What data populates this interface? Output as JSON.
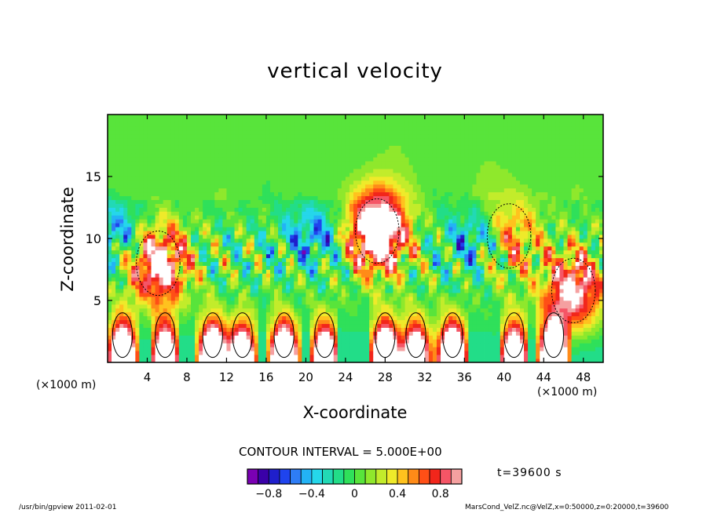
{
  "title": "vertical velocity",
  "xlabel": "X-coordinate",
  "ylabel": "Z-coordinate",
  "x_unit_left": "(×1000 m)",
  "x_unit_right": "(×1000 m)",
  "contour_interval_text": "CONTOUR INTERVAL = 5.000E+00",
  "time_label": "t=39600 s",
  "footer_left": "/usr/bin/gpview  2011-02-01",
  "footer_right": "MarsCond_VelZ.nc@VelZ,x=0:50000,z=0:20000,t=39600",
  "chart_data": {
    "type": "heatmap",
    "title": "vertical velocity",
    "xlabel": "X-coordinate",
    "ylabel": "Z-coordinate",
    "xlim": [
      0,
      50
    ],
    "ylim": [
      0,
      20
    ],
    "x_ticks": [
      4,
      8,
      12,
      16,
      20,
      24,
      28,
      32,
      36,
      40,
      44,
      48
    ],
    "y_ticks": [
      5,
      10,
      15
    ],
    "colorbar": {
      "min": -1.0,
      "max": 1.0,
      "step": 0.1,
      "tick_values": [
        -0.8,
        -0.4,
        0,
        0.4,
        0.8
      ],
      "tick_labels": [
        "−0.8",
        "−0.4",
        "0",
        "0.4",
        "0.8"
      ],
      "colors": [
        "#7a00b3",
        "#3a00a8",
        "#1f1fcc",
        "#1f44ee",
        "#2e7df6",
        "#23b3f5",
        "#25d7ea",
        "#22d9b5",
        "#22dd88",
        "#2fe05a",
        "#58e43b",
        "#8fe82c",
        "#c2ec2b",
        "#efea2a",
        "#ffc21e",
        "#ff8b18",
        "#ff4f16",
        "#f2261b",
        "#f55566",
        "#f5a0a0"
      ]
    },
    "field": {
      "background_level": 0,
      "upper_level": 0.05,
      "updrafts": [
        {
          "x": 27.2,
          "z": 10.6,
          "w": 1.6
        },
        {
          "x": 5.1,
          "z": 8.0,
          "w": 1.2
        },
        {
          "x": 47.0,
          "z": 5.8,
          "w": 1.1
        },
        {
          "x": 40.5,
          "z": 10.2,
          "w": 0.7
        }
      ],
      "downdrafts": [
        {
          "x": 21.0,
          "z": 10.4,
          "w": -0.5
        },
        {
          "x": 37.5,
          "z": 10.0,
          "w": -0.55
        },
        {
          "x": 1.2,
          "z": 10.6,
          "w": -0.5
        }
      ],
      "surface_cells_x": [
        1.5,
        5.8,
        10.6,
        13.6,
        17.8,
        21.9,
        28.0,
        31.1,
        34.8,
        41.0,
        45.0
      ]
    }
  }
}
